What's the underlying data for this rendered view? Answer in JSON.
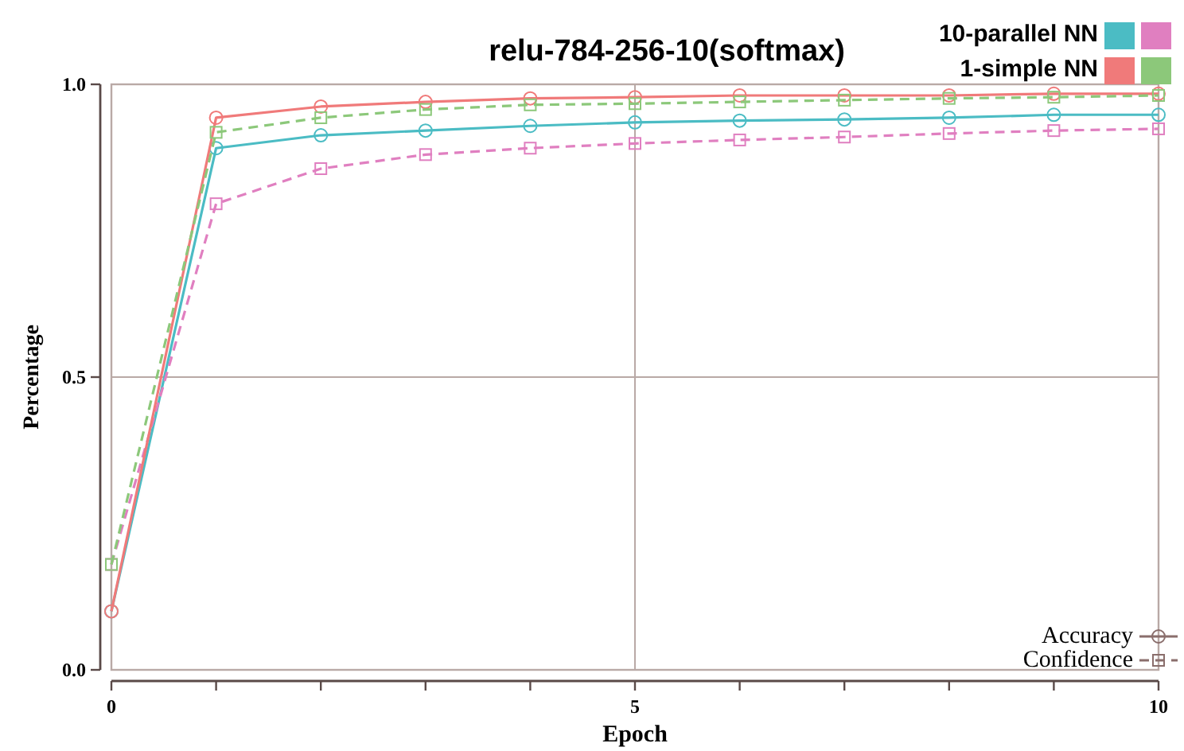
{
  "chart_data": {
    "type": "line",
    "title": "relu-784-256-10(softmax)",
    "xlabel": "Epoch",
    "ylabel": "Percentage",
    "x": [
      0,
      1,
      2,
      3,
      4,
      5,
      6,
      7,
      8,
      9,
      10
    ],
    "xlim": [
      0,
      10
    ],
    "xticks": [
      0,
      {
        "value": 1,
        "label": null
      },
      {
        "value": 2,
        "label": null
      },
      {
        "value": 3,
        "label": null
      },
      {
        "value": 4,
        "label": null
      },
      5,
      {
        "value": 6,
        "label": null
      },
      {
        "value": 7,
        "label": null
      },
      {
        "value": 8,
        "label": null
      },
      {
        "value": 9,
        "label": null
      },
      10
    ],
    "ylim": [
      0,
      1
    ],
    "yticks": [
      {
        "value": 0,
        "label": "0.0"
      },
      {
        "value": 0.5,
        "label": "0.5"
      },
      {
        "value": 1,
        "label": "1.0"
      }
    ],
    "grid": true,
    "legend": "top right",
    "annotations": [
      "Accuracy",
      "Confidence"
    ],
    "series": [
      {
        "name": "10-parallel NN",
        "color": "#4bbcc4",
        "marker": "circle",
        "line_style": "solid",
        "values": [
          0.1,
          0.891,
          0.913,
          0.921,
          0.929,
          0.935,
          0.938,
          0.94,
          0.943,
          0.948,
          0.948
        ]
      },
      {
        "color": "#e07fc0",
        "marker": "square",
        "line_style": "dashed",
        "values": [
          0.18,
          0.796,
          0.856,
          0.88,
          0.891,
          0.899,
          0.905,
          0.91,
          0.916,
          0.921,
          0.924
        ]
      },
      {
        "name": "1-simple NN",
        "color": "#f07a7a",
        "marker": "circle",
        "line_style": "solid",
        "values": [
          0.1,
          0.943,
          0.962,
          0.97,
          0.976,
          0.978,
          0.981,
          0.981,
          0.981,
          0.984,
          0.984
        ]
      },
      {
        "color": "#8cc87a",
        "marker": "square",
        "line_style": "dashed",
        "values": [
          0.18,
          0.918,
          0.943,
          0.957,
          0.965,
          0.967,
          0.97,
          0.973,
          0.976,
          0.978,
          0.981
        ]
      }
    ]
  }
}
